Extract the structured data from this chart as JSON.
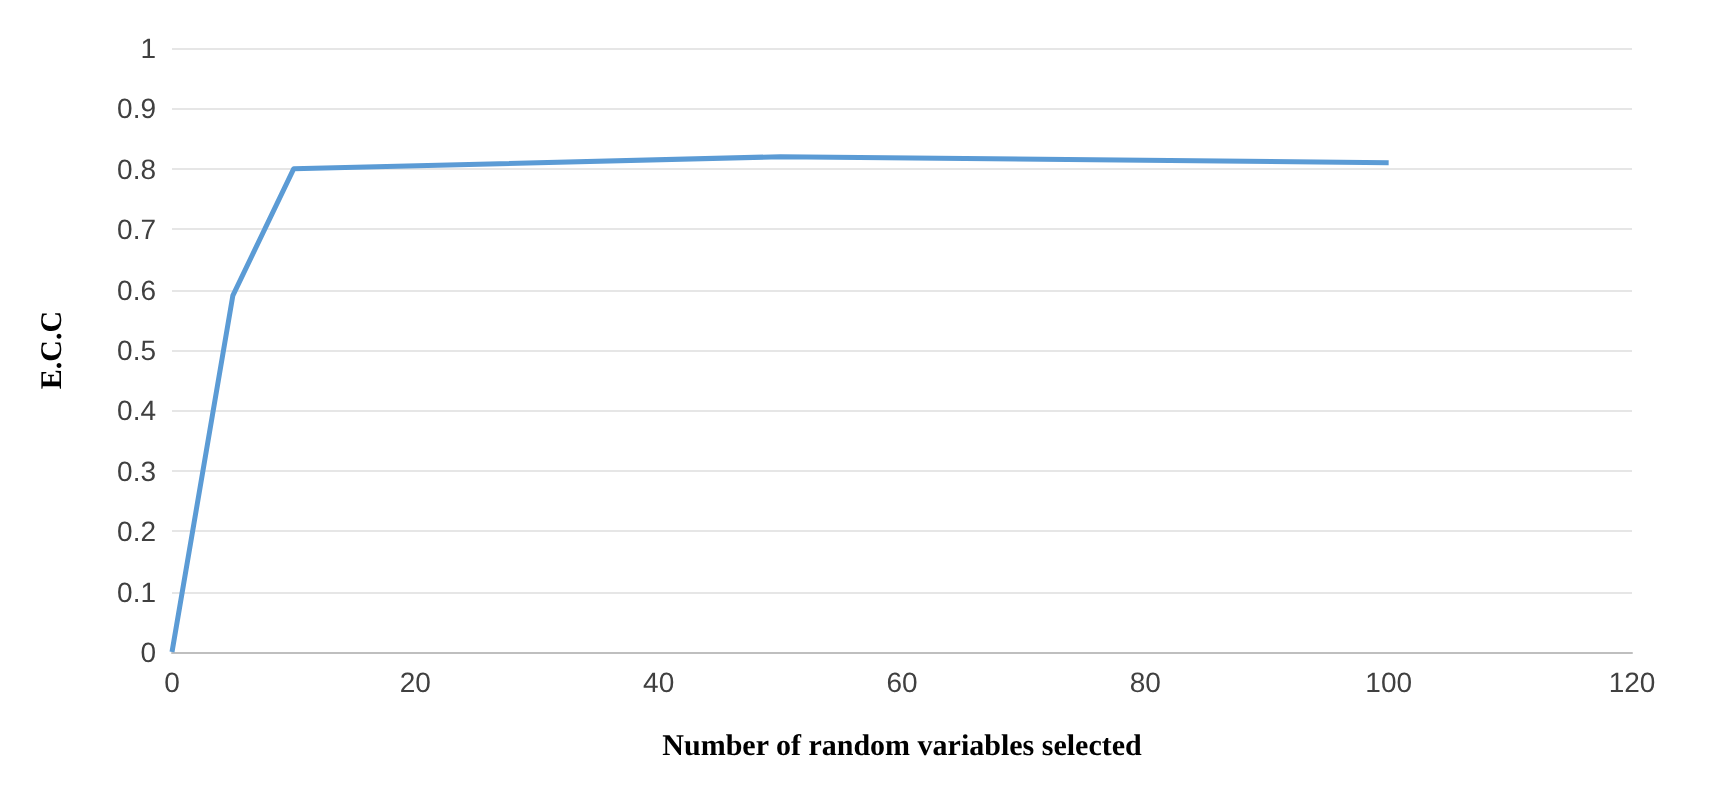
{
  "chart_data": {
    "type": "line",
    "xlabel": "Number of random variables selected",
    "ylabel": "E.C.C",
    "x": [
      0,
      5,
      10,
      50,
      100
    ],
    "series": [
      {
        "color": "#5b9bd5",
        "values": [
          0,
          0.59,
          0.8,
          0.82,
          0.81
        ]
      }
    ],
    "xlim": [
      0,
      120
    ],
    "xticks": [
      0,
      20,
      40,
      60,
      80,
      100,
      120
    ],
    "ylim": [
      0,
      1
    ],
    "yticks": [
      0,
      0.1,
      0.2,
      0.3,
      0.4,
      0.5,
      0.6,
      0.7,
      0.8,
      0.9,
      1
    ],
    "grid": "y",
    "marker": "none",
    "line_style": "solid"
  }
}
